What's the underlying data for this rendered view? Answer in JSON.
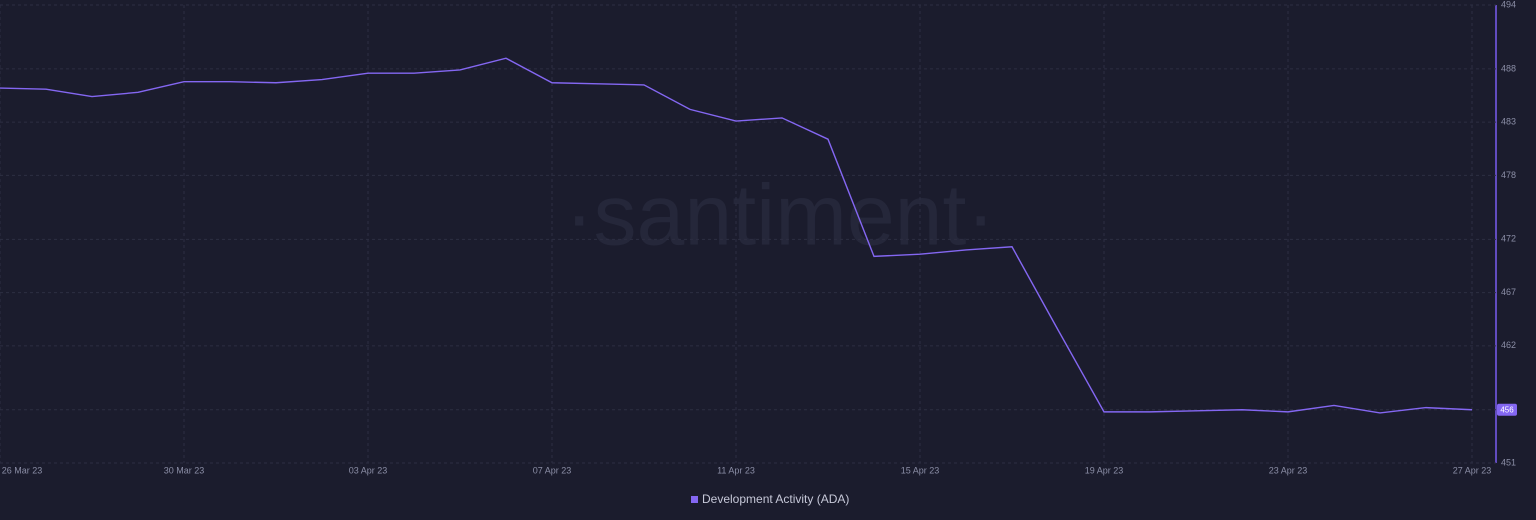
{
  "chart_data": {
    "type": "line",
    "watermark": "·santiment·",
    "categories": [
      "26 Mar 23",
      null,
      null,
      null,
      "30 Mar 23",
      null,
      null,
      null,
      "03 Apr 23",
      null,
      null,
      null,
      "07 Apr 23",
      null,
      null,
      null,
      "11 Apr 23",
      null,
      null,
      null,
      "15 Apr 23",
      null,
      null,
      null,
      "19 Apr 23",
      null,
      null,
      null,
      "23 Apr 23",
      null,
      null,
      null,
      "27 Apr 23"
    ],
    "series": [
      {
        "name": "Development Activity (ADA)",
        "color": "#8467f2",
        "values": [
          486.2,
          486.1,
          485.4,
          485.8,
          486.8,
          486.8,
          486.7,
          487.0,
          487.6,
          487.6,
          487.9,
          489.0,
          486.7,
          486.6,
          486.5,
          484.2,
          483.1,
          483.4,
          481.4,
          470.4,
          470.6,
          471.0,
          471.3,
          463.5,
          455.8,
          455.8,
          455.9,
          456.0,
          455.8,
          456.4,
          455.7,
          456.2,
          456
        ]
      }
    ],
    "ylim": [
      451,
      494
    ],
    "yticks": [
      451,
      456,
      462,
      467,
      472,
      478,
      483,
      488,
      494
    ],
    "grid": true
  }
}
